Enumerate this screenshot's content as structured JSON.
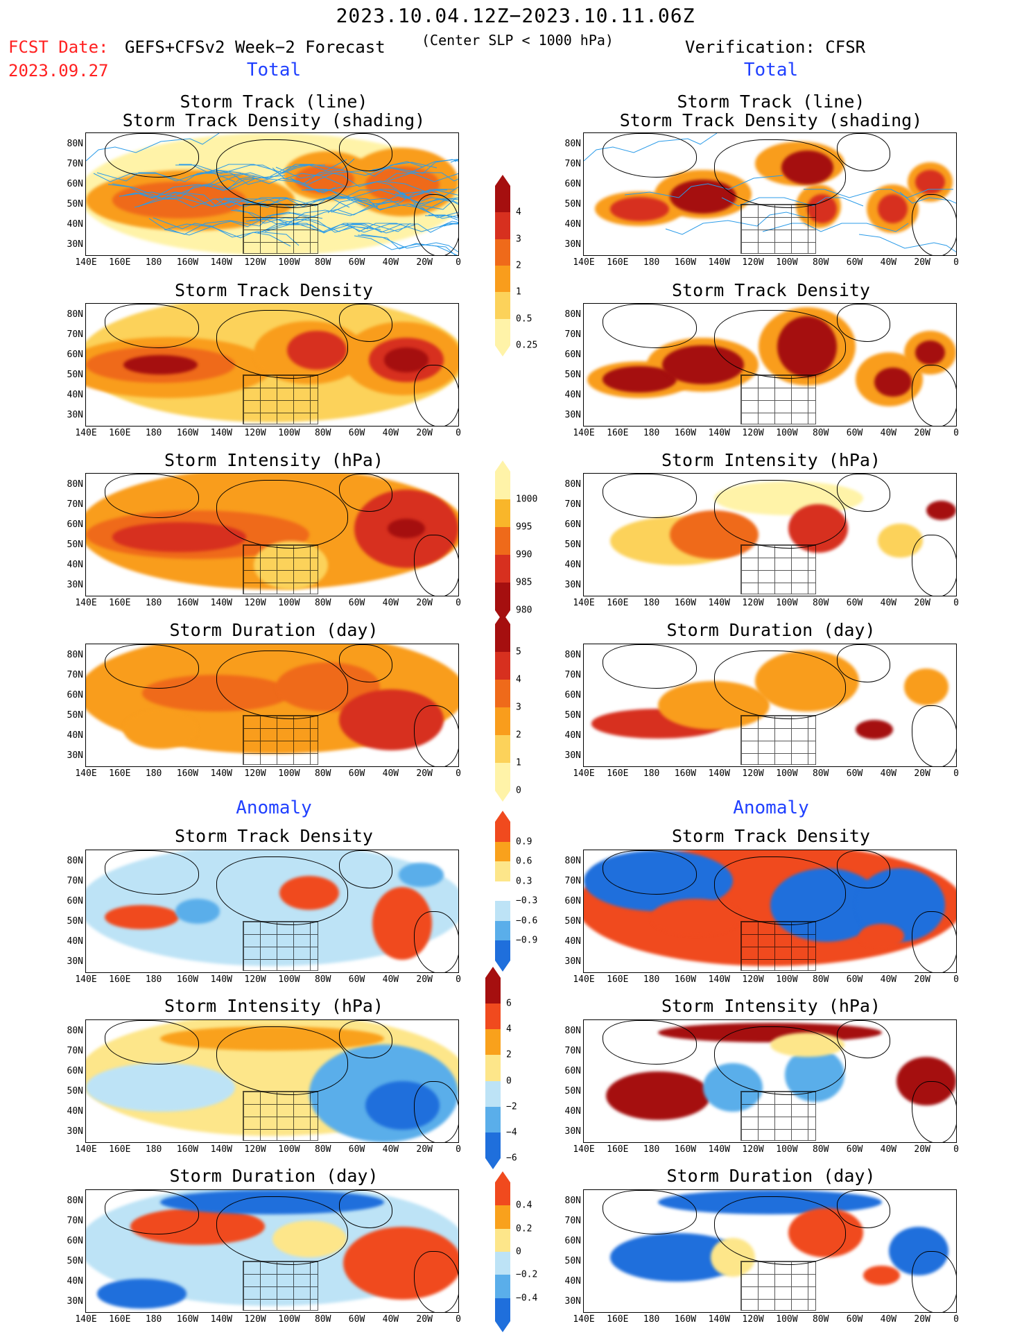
{
  "header": {
    "title": "2023.10.04.12Z−2023.10.11.06Z",
    "fcst_date_label": "FCST Date:",
    "fcst_date_value": "2023.09.27",
    "forecast_title": "GEFS+CFSv2 Week−2 Forecast",
    "forecast_subtitle": "(Center SLP < 1000 hPa)",
    "verification_title": "Verification: CFSR"
  },
  "sections": {
    "total": "Total",
    "anomaly": "Anomaly"
  },
  "panel_titles": {
    "track_line": "Storm Track (line)",
    "track_shading": "Storm Track Density (shading)",
    "density": "Storm Track Density",
    "intensity": "Storm Intensity (hPa)",
    "duration": "Storm Duration (day)"
  },
  "axes": {
    "lat_labels": [
      "80N",
      "70N",
      "60N",
      "50N",
      "40N",
      "30N"
    ],
    "lon_labels": [
      "140E",
      "160E",
      "180",
      "160W",
      "140W",
      "120W",
      "100W",
      "80W",
      "60W",
      "40W",
      "20W",
      "0"
    ]
  },
  "colorbars": {
    "total_density": {
      "labels": [
        "4",
        "3",
        "2",
        "1",
        "0.5",
        "0.25"
      ],
      "colors": [
        "#a50f0f",
        "#d7301f",
        "#ef6a1a",
        "#f99d1c",
        "#fcd25a",
        "#fff3a8"
      ]
    },
    "total_intensity": {
      "labels": [
        "1000",
        "995",
        "990",
        "985",
        "980"
      ],
      "colors": [
        "#fff3a8",
        "#f9b62a",
        "#ef6a1a",
        "#d7301f",
        "#a50f0f"
      ]
    },
    "total_duration": {
      "labels": [
        "5",
        "4",
        "3",
        "2",
        "1",
        "0"
      ],
      "colors": [
        "#a50f0f",
        "#d7301f",
        "#ef6a1a",
        "#f99d1c",
        "#fcd25a",
        "#fff3a8"
      ]
    },
    "anom_density": {
      "labels": [
        "0.9",
        "0.6",
        "0.3",
        "−0.3",
        "−0.6",
        "−0.9"
      ],
      "colors": [
        "#f04a1e",
        "#f9a11c",
        "#fde68a",
        "#ffffff",
        "#bde3f6",
        "#5aaeea",
        "#1f6fdc"
      ]
    },
    "anom_intensity": {
      "labels": [
        "6",
        "4",
        "2",
        "0",
        "−2",
        "−4",
        "−6"
      ],
      "colors": [
        "#a50f0f",
        "#f04a1e",
        "#f9a11c",
        "#fde68a",
        "#bde3f6",
        "#5aaeea",
        "#1f6fdc"
      ]
    },
    "anom_duration": {
      "labels": [
        "0.4",
        "0.2",
        "0",
        "−0.2",
        "−0.4"
      ],
      "colors": [
        "#f04a1e",
        "#f9a11c",
        "#fde68a",
        "#bde3f6",
        "#5aaeea",
        "#1f6fdc"
      ]
    }
  },
  "colors": {
    "title_red": "#ff2020",
    "section_blue": "#2040ff",
    "track_line": "#2b9be8"
  }
}
